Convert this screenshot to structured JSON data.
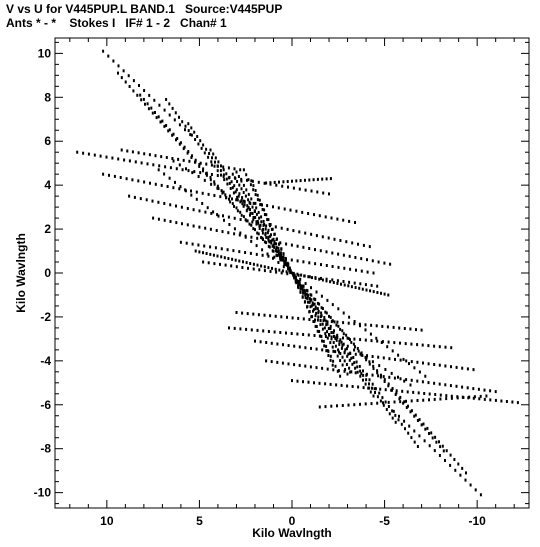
{
  "header": {
    "line1": "V vs U for V445PUP.L BAND.1   Source:V445PUP",
    "line2": "Ants * - *    Stokes I   IF# 1 - 2   Chan# 1"
  },
  "chart_data": {
    "type": "scatter",
    "xlabel": "Kilo Wavlngth",
    "ylabel": "Kilo Wavlngth",
    "xlim": [
      12.8,
      -12.8
    ],
    "ylim": [
      -10.7,
      10.7
    ],
    "xticks": [
      10,
      5,
      0,
      -5,
      -10
    ],
    "yticks": [
      10,
      8,
      6,
      4,
      2,
      0,
      -2,
      -4,
      -6,
      -8,
      -10
    ],
    "grid": false,
    "legend": "none",
    "marker_color": "#000000",
    "tracks": [
      {
        "start": [
          1.4,
          4.1
        ],
        "end": [
          -2.1,
          4.3
        ],
        "n": 16
      },
      {
        "start": [
          9.2,
          5.6
        ],
        "end": [
          2.8,
          4.7
        ],
        "n": 22
      },
      {
        "start": [
          11.6,
          5.5
        ],
        "end": [
          -2.0,
          3.6
        ],
        "n": 44
      },
      {
        "start": [
          10.2,
          4.5
        ],
        "end": [
          -3.4,
          2.3
        ],
        "n": 44
      },
      {
        "start": [
          8.8,
          3.5
        ],
        "end": [
          -4.2,
          1.2
        ],
        "n": 42
      },
      {
        "start": [
          7.5,
          2.5
        ],
        "end": [
          -5.3,
          0.4
        ],
        "n": 42
      },
      {
        "start": [
          6.0,
          1.4
        ],
        "end": [
          -4.4,
          0.0
        ],
        "n": 34
      },
      {
        "start": [
          4.8,
          0.5
        ],
        "end": [
          -4.6,
          -0.6
        ],
        "n": 32
      },
      {
        "start": [
          3.0,
          -1.8
        ],
        "end": [
          -7.0,
          -2.6
        ],
        "n": 34
      },
      {
        "start": [
          3.4,
          -2.5
        ],
        "end": [
          -8.6,
          -3.4
        ],
        "n": 40
      },
      {
        "start": [
          2.0,
          -3.1
        ],
        "end": [
          -9.8,
          -4.4
        ],
        "n": 40
      },
      {
        "start": [
          1.4,
          -4.0
        ],
        "end": [
          -11.0,
          -5.4
        ],
        "n": 42
      },
      {
        "start": [
          0.0,
          -4.9
        ],
        "end": [
          -12.2,
          -5.9
        ],
        "n": 42
      },
      {
        "start": [
          -1.5,
          -6.1
        ],
        "end": [
          -10.5,
          -5.6
        ],
        "n": 30
      },
      {
        "start": [
          9.4,
          9.1
        ],
        "end": [
          0.0,
          0.0
        ],
        "n": 46
      },
      {
        "start": [
          8.2,
          8.1
        ],
        "end": [
          0.0,
          0.0
        ],
        "n": 42
      },
      {
        "start": [
          6.8,
          7.9
        ],
        "end": [
          0.0,
          0.0
        ],
        "n": 40
      },
      {
        "start": [
          5.6,
          6.8
        ],
        "end": [
          0.0,
          0.0
        ],
        "n": 36
      },
      {
        "start": [
          4.4,
          5.6
        ],
        "end": [
          0.0,
          0.0
        ],
        "n": 32
      },
      {
        "start": [
          3.2,
          4.5
        ],
        "end": [
          0.0,
          0.0
        ],
        "n": 28
      },
      {
        "start": [
          -9.4,
          -9.1
        ],
        "end": [
          0.0,
          0.0
        ],
        "n": 46
      },
      {
        "start": [
          -8.2,
          -8.1
        ],
        "end": [
          0.0,
          0.0
        ],
        "n": 42
      },
      {
        "start": [
          -6.8,
          -7.9
        ],
        "end": [
          0.0,
          0.0
        ],
        "n": 40
      },
      {
        "start": [
          -5.6,
          -6.8
        ],
        "end": [
          0.0,
          0.0
        ],
        "n": 36
      },
      {
        "start": [
          -4.4,
          -5.6
        ],
        "end": [
          0.0,
          0.0
        ],
        "n": 32
      },
      {
        "start": [
          -3.2,
          -4.5
        ],
        "end": [
          0.0,
          0.0
        ],
        "n": 28
      },
      {
        "start": [
          10.2,
          10.1
        ],
        "end": [
          5.5,
          6.3
        ],
        "n": 18
      },
      {
        "start": [
          -10.2,
          -10.1
        ],
        "end": [
          -5.5,
          -6.3
        ],
        "n": 18
      },
      {
        "start": [
          3.0,
          4.6
        ],
        "end": [
          -3.0,
          -4.6
        ],
        "n": 46
      },
      {
        "start": [
          2.2,
          4.2
        ],
        "end": [
          0.0,
          0.0
        ],
        "n": 20
      },
      {
        "start": [
          -2.2,
          -4.2
        ],
        "end": [
          0.0,
          0.0
        ],
        "n": 20
      },
      {
        "start": [
          5.2,
          1.0
        ],
        "end": [
          -5.2,
          -1.0
        ],
        "n": 54
      },
      {
        "start": [
          7.2,
          4.7
        ],
        "end": [
          -7.2,
          -4.7
        ],
        "n": 50
      },
      {
        "start": [
          6.4,
          5.1
        ],
        "end": [
          2.0,
          2.8
        ],
        "n": 14
      },
      {
        "start": [
          -6.4,
          -5.1
        ],
        "end": [
          -2.0,
          -2.8
        ],
        "n": 14
      },
      {
        "start": [
          2.6,
          4.7
        ],
        "end": [
          0.2,
          0.4
        ],
        "n": 20
      },
      {
        "start": [
          -2.6,
          -4.7
        ],
        "end": [
          -0.2,
          -0.4
        ],
        "n": 20
      }
    ]
  }
}
